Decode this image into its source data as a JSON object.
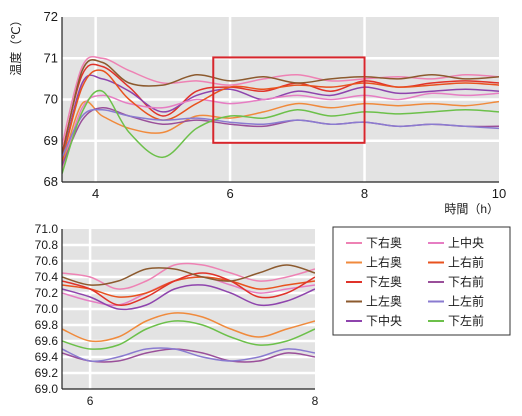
{
  "chart_data": [
    {
      "type": "line",
      "xlabel": "時間（h）",
      "ylabel": "温度（℃）",
      "xlim": [
        3.5,
        10
      ],
      "ylim": [
        68,
        72
      ],
      "x_ticks": [
        4,
        6,
        8,
        10
      ],
      "y_ticks": [
        68,
        69,
        70,
        71,
        72
      ],
      "grid": true,
      "highlight_box": {
        "x": [
          5.75,
          8
        ],
        "y": [
          68.95,
          71.02
        ],
        "color": "#d7262c"
      },
      "series": [
        {
          "name": "下右奥",
          "color": "#ee82b4",
          "x": [
            3.5,
            3.8,
            4.1,
            4.5,
            5.0,
            5.5,
            6.0,
            6.5,
            7.0,
            7.5,
            8.0,
            8.5,
            9.0,
            9.5,
            10.0
          ],
          "values": [
            68.9,
            70.8,
            71.0,
            70.7,
            70.4,
            70.45,
            70.35,
            70.5,
            70.6,
            70.45,
            70.5,
            70.55,
            70.5,
            70.6,
            70.55
          ]
        },
        {
          "name": "上右奥",
          "color": "#f08a3c",
          "x": [
            3.5,
            3.8,
            4.1,
            4.5,
            5.0,
            5.5,
            6.0,
            6.5,
            7.0,
            7.5,
            8.0,
            8.5,
            9.0,
            9.5,
            10.0
          ],
          "values": [
            68.4,
            69.9,
            69.6,
            69.3,
            69.2,
            69.6,
            69.55,
            69.7,
            69.9,
            69.8,
            69.9,
            69.85,
            69.9,
            69.85,
            69.95
          ]
        },
        {
          "name": "下左奥",
          "color": "#e0332a",
          "x": [
            3.5,
            3.8,
            4.1,
            4.5,
            5.0,
            5.5,
            6.0,
            6.5,
            7.0,
            7.5,
            8.0,
            8.5,
            9.0,
            9.5,
            10.0
          ],
          "values": [
            68.7,
            70.6,
            70.8,
            70.3,
            69.6,
            70.2,
            70.3,
            70.2,
            70.4,
            70.2,
            70.45,
            70.3,
            70.4,
            70.45,
            70.4
          ]
        },
        {
          "name": "上左奥",
          "color": "#8c5a2e",
          "x": [
            3.5,
            3.8,
            4.1,
            4.5,
            5.0,
            5.5,
            6.0,
            6.5,
            7.0,
            7.5,
            8.0,
            8.5,
            9.0,
            9.5,
            10.0
          ],
          "values": [
            68.6,
            70.7,
            70.9,
            70.4,
            70.35,
            70.6,
            70.45,
            70.55,
            70.4,
            70.5,
            70.55,
            70.5,
            70.6,
            70.5,
            70.55
          ]
        },
        {
          "name": "下中央",
          "color": "#8e44ad",
          "x": [
            3.5,
            3.8,
            4.1,
            4.5,
            5.0,
            5.5,
            6.0,
            6.5,
            7.0,
            7.5,
            8.0,
            8.5,
            9.0,
            9.5,
            10.0
          ],
          "values": [
            68.5,
            70.4,
            70.5,
            70.2,
            69.7,
            70.1,
            70.25,
            70.0,
            70.2,
            70.1,
            70.3,
            70.15,
            70.2,
            70.25,
            70.2
          ]
        },
        {
          "name": "上中央",
          "color": "#e67dc3",
          "x": [
            3.5,
            3.8,
            4.1,
            4.5,
            5.0,
            5.5,
            6.0,
            6.5,
            7.0,
            7.5,
            8.0,
            8.5,
            9.0,
            9.5,
            10.0
          ],
          "values": [
            68.3,
            69.8,
            70.1,
            69.9,
            69.8,
            70.0,
            69.9,
            70.0,
            70.1,
            70.0,
            70.1,
            70.0,
            70.15,
            70.1,
            70.15
          ]
        },
        {
          "name": "上右前",
          "color": "#e8521e",
          "x": [
            3.5,
            3.8,
            4.1,
            4.5,
            5.0,
            5.5,
            6.0,
            6.5,
            7.0,
            7.5,
            8.0,
            8.5,
            9.0,
            9.5,
            10.0
          ],
          "values": [
            68.5,
            70.3,
            70.7,
            70.0,
            69.5,
            69.9,
            70.3,
            70.25,
            70.35,
            70.3,
            70.4,
            70.3,
            70.35,
            70.4,
            70.35
          ]
        },
        {
          "name": "下右前",
          "color": "#9a4f9a",
          "x": [
            3.5,
            3.8,
            4.1,
            4.5,
            5.0,
            5.5,
            6.0,
            6.5,
            7.0,
            7.5,
            8.0,
            8.5,
            9.0,
            9.5,
            10.0
          ],
          "values": [
            68.4,
            69.5,
            69.8,
            69.6,
            69.4,
            69.5,
            69.4,
            69.35,
            69.5,
            69.4,
            69.45,
            69.35,
            69.4,
            69.35,
            69.35
          ]
        },
        {
          "name": "上左前",
          "color": "#8a7bd0",
          "x": [
            3.5,
            3.8,
            4.1,
            4.5,
            5.0,
            5.5,
            6.0,
            6.5,
            7.0,
            7.5,
            8.0,
            8.5,
            9.0,
            9.5,
            10.0
          ],
          "values": [
            68.6,
            69.6,
            69.75,
            69.6,
            69.5,
            69.55,
            69.45,
            69.4,
            69.5,
            69.4,
            69.45,
            69.35,
            69.4,
            69.35,
            69.3
          ]
        },
        {
          "name": "下左前",
          "color": "#6cc04a",
          "x": [
            3.5,
            3.8,
            4.1,
            4.5,
            5.0,
            5.5,
            6.0,
            6.5,
            7.0,
            7.5,
            8.0,
            8.5,
            9.0,
            9.5,
            10.0
          ],
          "values": [
            68.2,
            69.7,
            70.2,
            69.2,
            68.6,
            69.3,
            69.6,
            69.55,
            69.75,
            69.6,
            69.7,
            69.65,
            69.7,
            69.75,
            69.7
          ]
        }
      ]
    },
    {
      "type": "line",
      "xlim": [
        5.75,
        8
      ],
      "ylim": [
        69.0,
        71.0
      ],
      "x_ticks": [
        6,
        8
      ],
      "y_ticks": [
        69.0,
        69.2,
        69.4,
        69.6,
        69.8,
        70.0,
        70.2,
        70.4,
        70.6,
        70.8,
        71.0
      ],
      "grid": true,
      "series": [
        {
          "name": "下右奥",
          "color": "#ee82b4",
          "x": [
            5.75,
            6.0,
            6.25,
            6.5,
            6.75,
            7.0,
            7.25,
            7.5,
            7.75,
            8.0
          ],
          "values": [
            70.45,
            70.4,
            70.25,
            70.35,
            70.55,
            70.55,
            70.45,
            70.35,
            70.4,
            70.5
          ]
        },
        {
          "name": "上中央",
          "color": "#e67dc3",
          "x": [
            5.75,
            6.0,
            6.25,
            6.5,
            6.75,
            7.0,
            7.25,
            7.5,
            7.75,
            8.0
          ],
          "values": [
            70.2,
            70.1,
            70.05,
            70.2,
            70.35,
            70.4,
            70.3,
            70.2,
            70.25,
            70.3
          ]
        },
        {
          "name": "上右奥",
          "color": "#f08a3c",
          "x": [
            5.75,
            6.0,
            6.25,
            6.5,
            6.75,
            7.0,
            7.25,
            7.5,
            7.75,
            8.0
          ],
          "values": [
            69.75,
            69.6,
            69.65,
            69.85,
            69.95,
            69.9,
            69.75,
            69.65,
            69.75,
            69.85
          ]
        },
        {
          "name": "上右前",
          "color": "#e8521e",
          "x": [
            5.75,
            6.0,
            6.25,
            6.5,
            6.75,
            7.0,
            7.25,
            7.5,
            7.75,
            8.0
          ],
          "values": [
            70.3,
            70.25,
            70.15,
            70.2,
            70.35,
            70.4,
            70.35,
            70.25,
            70.3,
            70.35
          ]
        },
        {
          "name": "下左奥",
          "color": "#e0332a",
          "x": [
            5.75,
            6.0,
            6.25,
            6.5,
            6.75,
            7.0,
            7.25,
            7.5,
            7.75,
            8.0
          ],
          "values": [
            70.35,
            70.25,
            70.05,
            70.15,
            70.35,
            70.45,
            70.35,
            70.15,
            70.2,
            70.4
          ]
        },
        {
          "name": "下右前",
          "color": "#9a4f9a",
          "x": [
            5.75,
            6.0,
            6.25,
            6.5,
            6.75,
            7.0,
            7.25,
            7.5,
            7.75,
            8.0
          ],
          "values": [
            69.45,
            69.35,
            69.35,
            69.45,
            69.5,
            69.45,
            69.35,
            69.35,
            69.45,
            69.4
          ]
        },
        {
          "name": "上左奥",
          "color": "#8c5a2e",
          "x": [
            5.75,
            6.0,
            6.25,
            6.5,
            6.75,
            7.0,
            7.25,
            7.5,
            7.75,
            8.0
          ],
          "values": [
            70.4,
            70.3,
            70.35,
            70.5,
            70.5,
            70.4,
            70.35,
            70.45,
            70.55,
            70.45
          ]
        },
        {
          "name": "上左前",
          "color": "#8a7bd0",
          "x": [
            5.75,
            6.0,
            6.25,
            6.5,
            6.75,
            7.0,
            7.25,
            7.5,
            7.75,
            8.0
          ],
          "values": [
            69.5,
            69.35,
            69.4,
            69.5,
            69.5,
            69.4,
            69.35,
            69.4,
            69.5,
            69.45
          ]
        },
        {
          "name": "下中央",
          "color": "#8e44ad",
          "x": [
            5.75,
            6.0,
            6.25,
            6.5,
            6.75,
            7.0,
            7.25,
            7.5,
            7.75,
            8.0
          ],
          "values": [
            70.25,
            70.15,
            70.0,
            70.05,
            70.25,
            70.3,
            70.2,
            70.05,
            70.1,
            70.25
          ]
        },
        {
          "name": "下左前",
          "color": "#6cc04a",
          "x": [
            5.75,
            6.0,
            6.25,
            6.5,
            6.75,
            7.0,
            7.25,
            7.5,
            7.75,
            8.0
          ],
          "values": [
            69.6,
            69.5,
            69.55,
            69.75,
            69.85,
            69.8,
            69.65,
            69.55,
            69.6,
            69.75
          ]
        }
      ]
    }
  ],
  "legend": {
    "left": [
      "下右奥",
      "上右奥",
      "下左奥",
      "上左奥",
      "下中央"
    ],
    "right": [
      "上中央",
      "上右前",
      "下右前",
      "上左前",
      "下左前"
    ]
  }
}
